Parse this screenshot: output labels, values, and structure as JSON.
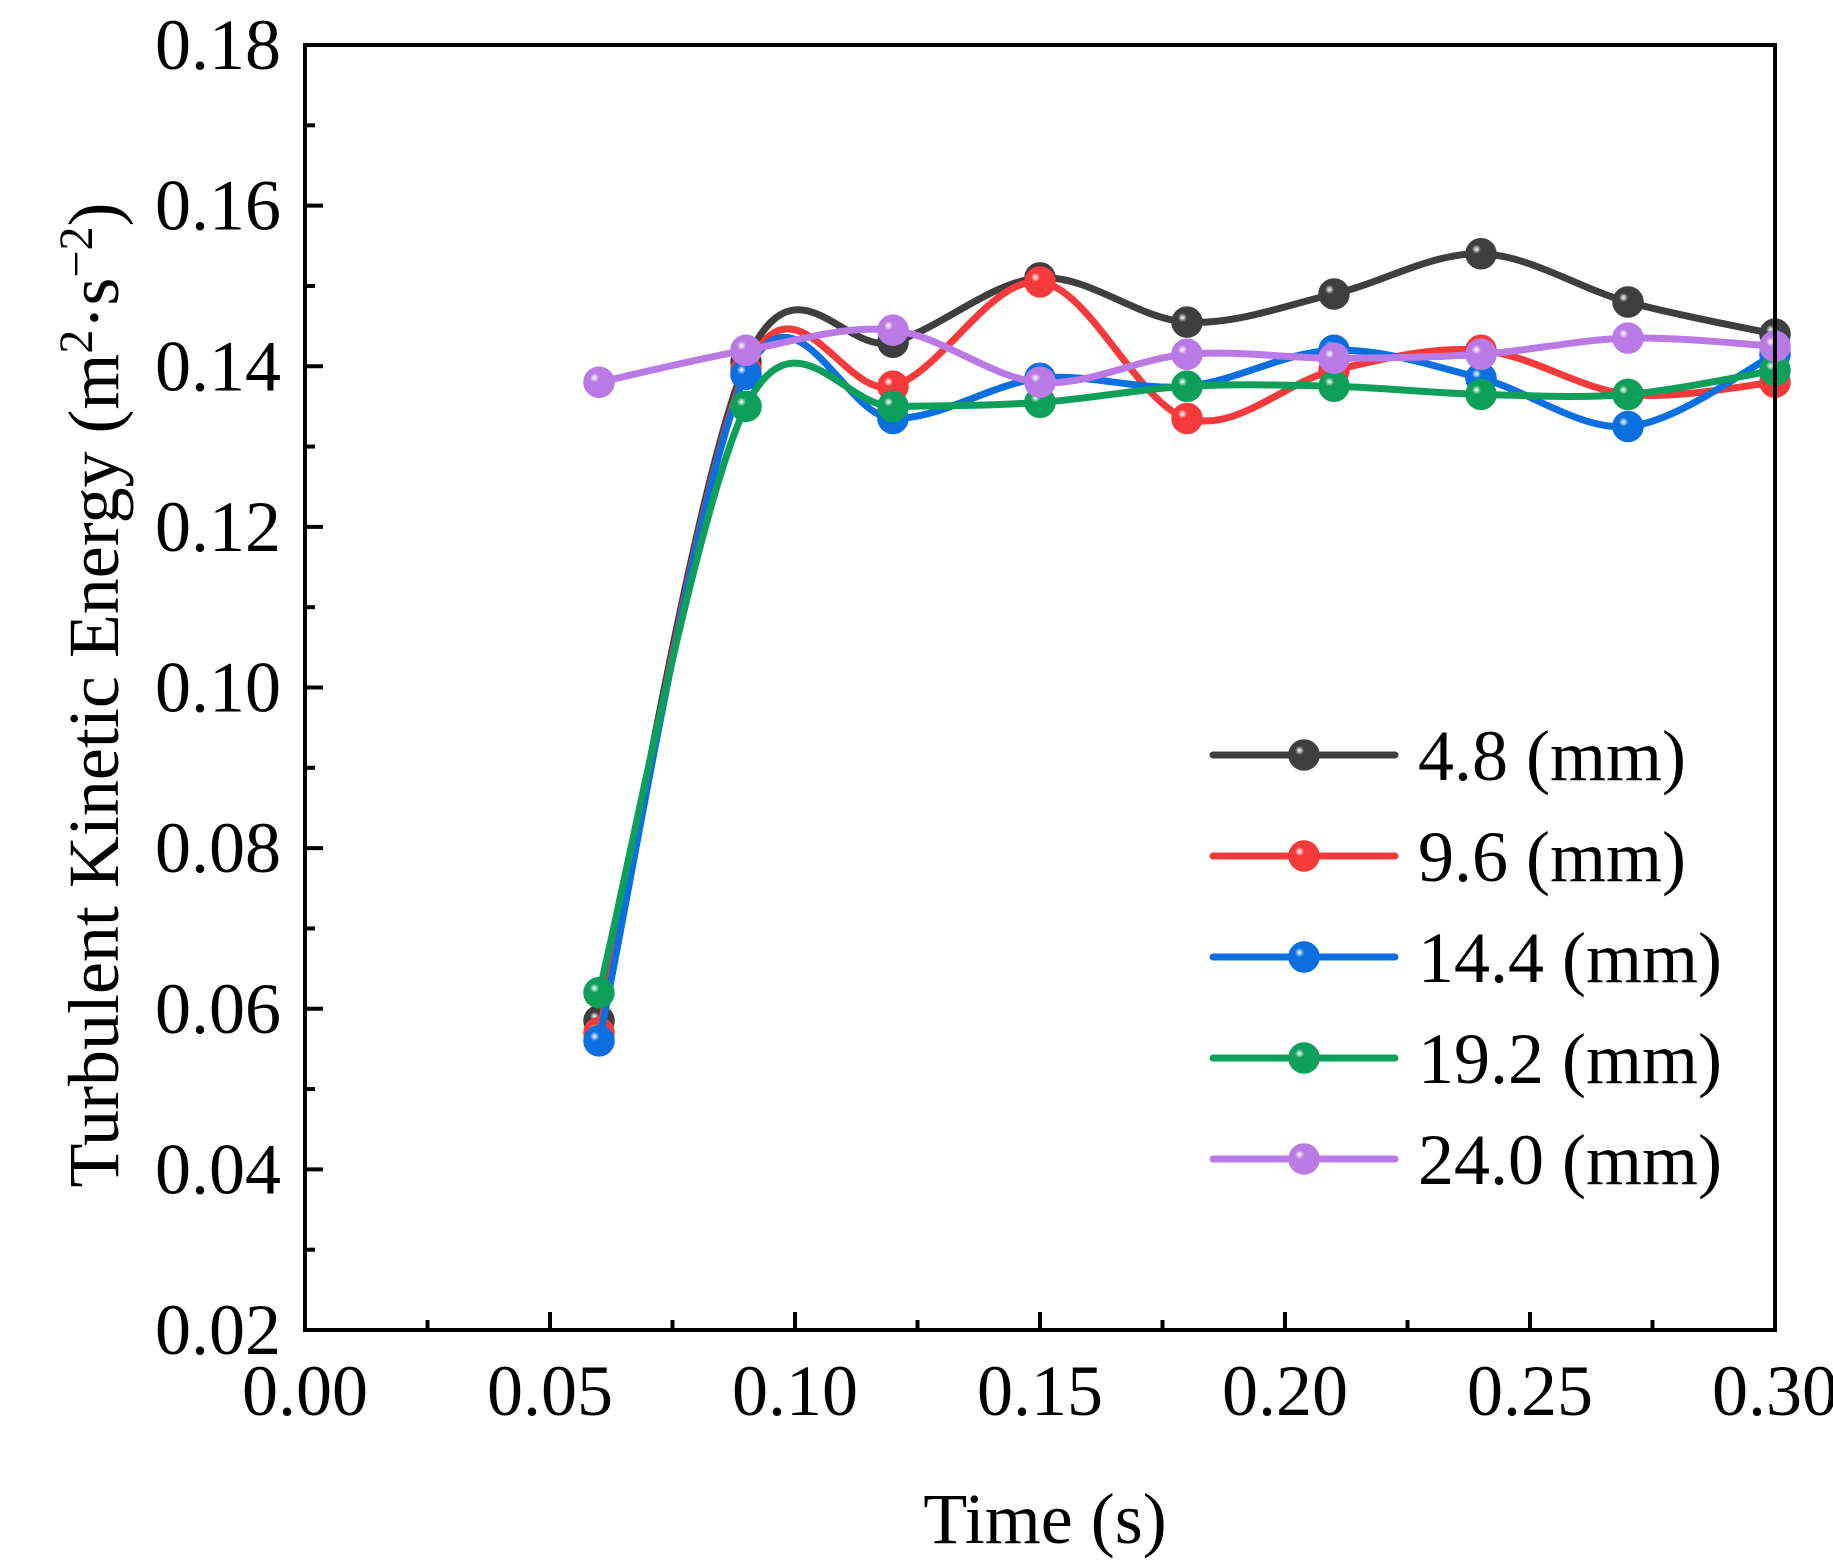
{
  "chart_data": {
    "type": "line",
    "title": "",
    "xlabel": "Time (s)",
    "ylabel": {
      "main": "Turbulent Kinetic Energy (m",
      "sup1": "2",
      "mid": "·s",
      "sup2": "−2",
      "end": ")"
    },
    "xlim": [
      0.0,
      0.3
    ],
    "ylim": [
      0.02,
      0.18
    ],
    "x": [
      0.06,
      0.09,
      0.12,
      0.15,
      0.18,
      0.21,
      0.24,
      0.27,
      0.3
    ],
    "x_ticks": [
      "0.00",
      "0.05",
      "0.10",
      "0.15",
      "0.20",
      "0.25",
      "0.30"
    ],
    "y_ticks": [
      "0.02",
      "0.04",
      "0.06",
      "0.08",
      "0.10",
      "0.12",
      "0.14",
      "0.16",
      "0.18"
    ],
    "grid": false,
    "legend_position": "right",
    "series": [
      {
        "name": "4.8 (mm)",
        "color": "#3f3f3f",
        "values": [
          0.0585,
          0.1405,
          0.143,
          0.151,
          0.1455,
          0.149,
          0.154,
          0.148,
          0.144
        ]
      },
      {
        "name": "9.6 (mm)",
        "color": "#f43a3a",
        "values": [
          0.057,
          0.1395,
          0.1375,
          0.1505,
          0.1335,
          0.1395,
          0.142,
          0.1365,
          0.138
        ]
      },
      {
        "name": "14.4 (mm)",
        "color": "#0b6fe0",
        "values": [
          0.056,
          0.139,
          0.1335,
          0.1385,
          0.1375,
          0.142,
          0.1385,
          0.1325,
          0.1415
        ]
      },
      {
        "name": "19.2 (mm)",
        "color": "#0e9f5a",
        "values": [
          0.062,
          0.135,
          0.135,
          0.1355,
          0.1375,
          0.1375,
          0.1365,
          0.1365,
          0.1395
        ]
      },
      {
        "name": "24.0 (mm)",
        "color": "#b97ae6",
        "values": [
          0.138,
          0.142,
          0.1445,
          0.138,
          0.1415,
          0.141,
          0.1415,
          0.1435,
          0.1425
        ]
      }
    ]
  }
}
